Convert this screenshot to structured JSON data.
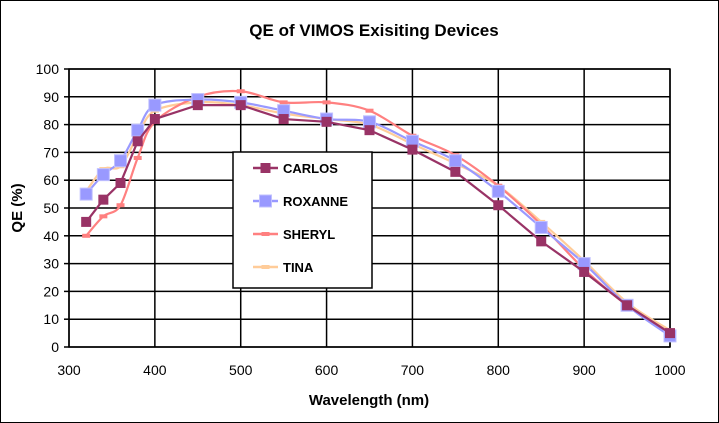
{
  "chart_data": {
    "type": "line",
    "title": "QE of VIMOS Exisiting Devices",
    "xlabel": "Wavelength (nm)",
    "ylabel": "QE (%)",
    "xlim": [
      300,
      1000
    ],
    "ylim": [
      0,
      100
    ],
    "xticks": [
      "300",
      "400",
      "500",
      "600",
      "700",
      "800",
      "900",
      "1000"
    ],
    "yticks": [
      "0",
      "10",
      "20",
      "30",
      "40",
      "50",
      "60",
      "70",
      "80",
      "90",
      "100"
    ],
    "grid": true,
    "legend_position": "center-left",
    "x": [
      320,
      340,
      360,
      380,
      400,
      450,
      500,
      550,
      600,
      650,
      700,
      750,
      800,
      850,
      900,
      950,
      1000
    ],
    "series": [
      {
        "name": "CARLOS",
        "color": "#993366",
        "marker": "square",
        "values": [
          45,
          53,
          59,
          74,
          82,
          87,
          87,
          82,
          81,
          78,
          71,
          63,
          51,
          38,
          27,
          15,
          5
        ]
      },
      {
        "name": "ROXANNE",
        "color": "#9999ff",
        "marker": "square-large",
        "values": [
          55,
          62,
          67,
          78,
          87,
          89,
          88,
          85,
          82,
          81,
          74,
          67,
          56,
          43,
          30,
          15,
          4
        ]
      },
      {
        "name": "SHERYL",
        "color": "#ff8080",
        "marker": "dash",
        "values": [
          40,
          47,
          51,
          68,
          81,
          90,
          92,
          88,
          88,
          85,
          76,
          69,
          58,
          44,
          28,
          15,
          5
        ]
      },
      {
        "name": "TINA",
        "color": "#ffcc99",
        "marker": "dash",
        "values": [
          56,
          64,
          65,
          76,
          85,
          88,
          87,
          84,
          82,
          80,
          73,
          66,
          58,
          45,
          31,
          16,
          6
        ]
      }
    ]
  }
}
